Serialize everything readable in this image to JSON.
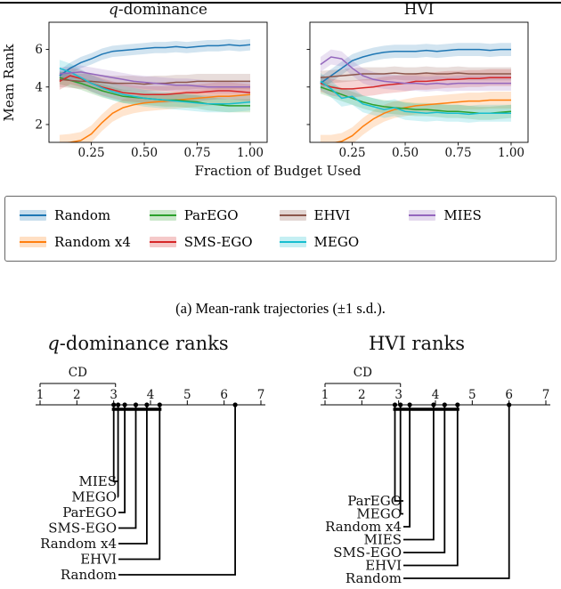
{
  "figure": {
    "caption": "(a) Mean-rank trajectories (±1 s.d.)."
  },
  "legend": {
    "order": [
      "Random",
      "ParEGO",
      "EHVI",
      "MIES",
      "Random x4",
      "SMS-EGO",
      "MEGO"
    ]
  },
  "chart_data": [
    {
      "type": "line",
      "title": "q-dominance",
      "xlabel": "Fraction of Budget Used",
      "ylabel": "Mean Rank",
      "xlim": [
        0.05,
        1.08
      ],
      "ylim": [
        1.05,
        7.45
      ],
      "xticks": [
        0.25,
        0.5,
        0.75,
        1.0
      ],
      "yticks": [
        2,
        4,
        6
      ],
      "x": [
        0.1,
        0.15,
        0.2,
        0.25,
        0.3,
        0.35,
        0.4,
        0.45,
        0.5,
        0.55,
        0.6,
        0.65,
        0.7,
        0.75,
        0.8,
        0.85,
        0.9,
        0.95,
        1.0
      ],
      "series": [
        {
          "name": "Random",
          "color": "#1f77b4",
          "band": 0.3,
          "values": [
            4.6,
            5.0,
            5.3,
            5.5,
            5.75,
            5.9,
            5.95,
            6.0,
            6.05,
            6.1,
            6.1,
            6.15,
            6.1,
            6.15,
            6.2,
            6.2,
            6.25,
            6.2,
            6.25
          ]
        },
        {
          "name": "Random x4",
          "color": "#ff7f0e",
          "band": 0.45,
          "values": [
            1.0,
            1.05,
            1.15,
            1.5,
            2.1,
            2.6,
            2.9,
            3.05,
            3.15,
            3.2,
            3.25,
            3.3,
            3.35,
            3.4,
            3.45,
            3.5,
            3.5,
            3.55,
            3.6
          ]
        },
        {
          "name": "ParEGO",
          "color": "#2ca02c",
          "band": 0.35,
          "values": [
            4.5,
            4.35,
            4.2,
            4.0,
            3.8,
            3.65,
            3.5,
            3.45,
            3.4,
            3.35,
            3.3,
            3.3,
            3.25,
            3.2,
            3.1,
            3.05,
            3.0,
            3.0,
            3.0
          ]
        },
        {
          "name": "SMS-EGO",
          "color": "#d62728",
          "band": 0.45,
          "values": [
            4.3,
            4.6,
            4.45,
            4.2,
            4.0,
            3.85,
            3.7,
            3.65,
            3.6,
            3.6,
            3.6,
            3.65,
            3.7,
            3.7,
            3.75,
            3.8,
            3.8,
            3.75,
            3.7
          ]
        },
        {
          "name": "EHVI",
          "color": "#8c564b",
          "band": 0.4,
          "values": [
            4.4,
            4.35,
            4.3,
            4.3,
            4.25,
            4.2,
            4.2,
            4.2,
            4.15,
            4.2,
            4.2,
            4.25,
            4.25,
            4.3,
            4.3,
            4.3,
            4.3,
            4.3,
            4.3
          ]
        },
        {
          "name": "MEGO",
          "color": "#17becf",
          "band": 0.45,
          "values": [
            5.0,
            4.8,
            4.5,
            4.2,
            3.95,
            3.75,
            3.6,
            3.5,
            3.4,
            3.35,
            3.3,
            3.25,
            3.2,
            3.15,
            3.1,
            3.1,
            3.1,
            3.15,
            3.2
          ]
        },
        {
          "name": "MIES",
          "color": "#9467bd",
          "band": 0.35,
          "values": [
            4.7,
            4.75,
            4.8,
            4.7,
            4.6,
            4.5,
            4.4,
            4.3,
            4.25,
            4.2,
            4.15,
            4.1,
            4.1,
            4.05,
            4.0,
            4.0,
            4.0,
            4.0,
            4.0
          ]
        }
      ]
    },
    {
      "type": "line",
      "title": "HVI",
      "xlabel": "Fraction of Budget Used",
      "ylabel": "Mean Rank",
      "xlim": [
        0.05,
        1.08
      ],
      "ylim": [
        1.05,
        7.45
      ],
      "xticks": [
        0.25,
        0.5,
        0.75,
        1.0
      ],
      "yticks": [
        2,
        4,
        6
      ],
      "x": [
        0.1,
        0.15,
        0.2,
        0.25,
        0.3,
        0.35,
        0.4,
        0.45,
        0.5,
        0.55,
        0.6,
        0.65,
        0.7,
        0.75,
        0.8,
        0.85,
        0.9,
        0.95,
        1.0
      ],
      "series": [
        {
          "name": "Random",
          "color": "#1f77b4",
          "band": 0.35,
          "values": [
            4.2,
            4.6,
            5.0,
            5.4,
            5.6,
            5.75,
            5.85,
            5.9,
            5.9,
            5.9,
            5.95,
            5.9,
            5.95,
            6.0,
            6.0,
            6.0,
            5.95,
            6.0,
            6.0
          ]
        },
        {
          "name": "Random x4",
          "color": "#ff7f0e",
          "band": 0.45,
          "values": [
            1.0,
            1.0,
            1.1,
            1.4,
            1.9,
            2.3,
            2.6,
            2.8,
            2.9,
            3.0,
            3.05,
            3.1,
            3.15,
            3.2,
            3.25,
            3.25,
            3.3,
            3.3,
            3.3
          ]
        },
        {
          "name": "ParEGO",
          "color": "#2ca02c",
          "band": 0.35,
          "values": [
            4.0,
            3.8,
            3.6,
            3.4,
            3.2,
            3.05,
            2.95,
            2.9,
            2.85,
            2.8,
            2.8,
            2.75,
            2.7,
            2.7,
            2.65,
            2.6,
            2.6,
            2.65,
            2.7
          ]
        },
        {
          "name": "SMS-EGO",
          "color": "#d62728",
          "band": 0.45,
          "values": [
            4.2,
            4.0,
            3.9,
            3.9,
            3.95,
            4.0,
            4.1,
            4.15,
            4.2,
            4.3,
            4.3,
            4.35,
            4.4,
            4.4,
            4.45,
            4.45,
            4.5,
            4.5,
            4.5
          ]
        },
        {
          "name": "EHVI",
          "color": "#8c564b",
          "band": 0.35,
          "values": [
            4.5,
            4.55,
            4.6,
            4.65,
            4.7,
            4.7,
            4.7,
            4.75,
            4.7,
            4.7,
            4.75,
            4.7,
            4.7,
            4.75,
            4.7,
            4.7,
            4.7,
            4.7,
            4.7
          ]
        },
        {
          "name": "MEGO",
          "color": "#17becf",
          "band": 0.45,
          "values": [
            4.3,
            3.9,
            3.4,
            3.5,
            3.1,
            2.95,
            2.8,
            2.9,
            2.7,
            2.65,
            2.6,
            2.65,
            2.6,
            2.6,
            2.55,
            2.6,
            2.6,
            2.6,
            2.6
          ]
        },
        {
          "name": "MIES",
          "color": "#9467bd",
          "band": 0.4,
          "values": [
            5.2,
            5.6,
            5.5,
            5.0,
            4.6,
            4.4,
            4.3,
            4.25,
            4.2,
            4.2,
            4.15,
            4.2,
            4.15,
            4.2,
            4.2,
            4.2,
            4.2,
            4.2,
            4.2
          ]
        }
      ]
    },
    {
      "type": "cd",
      "title": "q-dominance ranks",
      "cd_label": "CD",
      "cd": 2.05,
      "axis_ticks": [
        1,
        2,
        3,
        4,
        5,
        6,
        7
      ],
      "ranks": [
        {
          "name": "MIES",
          "rank": 3.0
        },
        {
          "name": "MEGO",
          "rank": 3.12
        },
        {
          "name": "ParEGO",
          "rank": 3.3
        },
        {
          "name": "SMS-EGO",
          "rank": 3.6
        },
        {
          "name": "Random x4",
          "rank": 3.9
        },
        {
          "name": "EHVI",
          "rank": 4.25
        },
        {
          "name": "Random",
          "rank": 6.3
        }
      ],
      "groups": [
        [
          "MIES",
          "EHVI"
        ]
      ]
    },
    {
      "type": "cd",
      "title": "HVI ranks",
      "cd_label": "CD",
      "cd": 2.05,
      "axis_ticks": [
        1,
        2,
        3,
        4,
        5,
        6,
        7
      ],
      "ranks": [
        {
          "name": "ParEGO",
          "rank": 2.9
        },
        {
          "name": "MEGO",
          "rank": 3.05
        },
        {
          "name": "Random x4",
          "rank": 3.3
        },
        {
          "name": "MIES",
          "rank": 3.95
        },
        {
          "name": "SMS-EGO",
          "rank": 4.25
        },
        {
          "name": "EHVI",
          "rank": 4.6
        },
        {
          "name": "Random",
          "rank": 6.0
        }
      ],
      "groups": [
        [
          "ParEGO",
          "EHVI"
        ]
      ]
    }
  ]
}
